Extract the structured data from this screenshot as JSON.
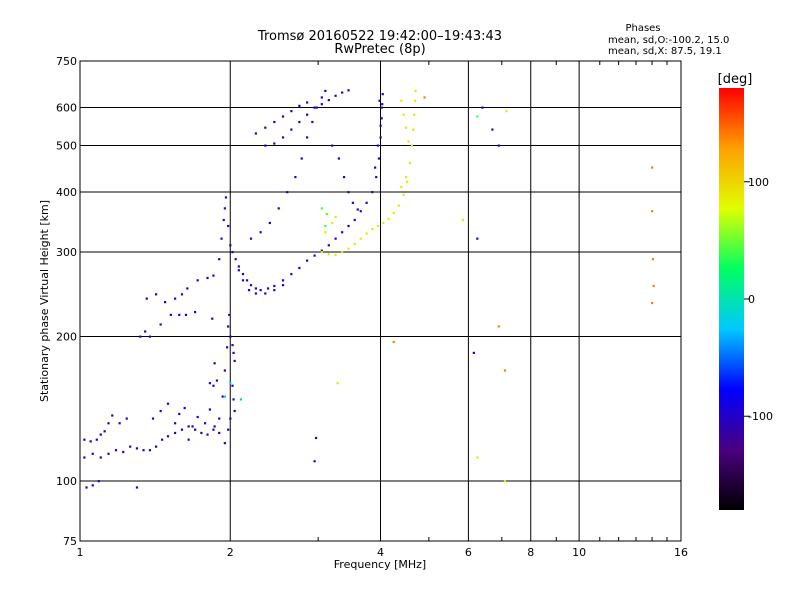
{
  "chart_data": {
    "type": "scatter",
    "title": "Tromsø 20160522 19:42:00–19:43:43",
    "subtitle": "RwPretec (8p)",
    "xlabel": "Frequency [MHz]",
    "ylabel": "Stationary phase Virtual Height [km]",
    "x_scale": "log",
    "y_scale": "log",
    "xlim": [
      1,
      16
    ],
    "ylim": [
      75,
      750
    ],
    "x_ticks": [
      1,
      2,
      4,
      6,
      8,
      10,
      16
    ],
    "x_tick_labels": [
      "1",
      "2",
      "4",
      "6",
      "8",
      "10",
      "16"
    ],
    "y_ticks": [
      75,
      100,
      200,
      300,
      400,
      500,
      600,
      750
    ],
    "y_tick_labels": [
      "75",
      "100",
      "200",
      "300",
      "400",
      "500",
      "600",
      "750"
    ],
    "grid": true,
    "stats": {
      "heading": "Phases",
      "line1": "mean, sd,O:-100.2, 15.0",
      "line2": "mean, sd,X: 87.5, 19.1"
    },
    "colorbar": {
      "label": "[deg]",
      "range": [
        -180,
        180
      ],
      "ticks": [
        100,
        0,
        -100
      ],
      "tick_labels": [
        "100",
        "0",
        "-100"
      ],
      "colors": [
        "#000000",
        "#4a0080",
        "#0000ff",
        "#00c8ff",
        "#00ff60",
        "#e0ff00",
        "#ffa000",
        "#ff0000"
      ]
    },
    "series": [
      {
        "trace": "o-mode",
        "phase_deg": -100,
        "points": [
          [
            1.02,
            112
          ],
          [
            1.06,
            114
          ],
          [
            1.1,
            112
          ],
          [
            1.14,
            114
          ],
          [
            1.18,
            116
          ],
          [
            1.22,
            115
          ],
          [
            1.26,
            118
          ],
          [
            1.3,
            117
          ],
          [
            1.34,
            116
          ],
          [
            1.38,
            116
          ],
          [
            1.42,
            118
          ],
          [
            1.46,
            122
          ],
          [
            1.5,
            124
          ],
          [
            1.55,
            126
          ],
          [
            1.6,
            128
          ],
          [
            1.65,
            130
          ],
          [
            1.7,
            128
          ],
          [
            1.75,
            126
          ],
          [
            1.8,
            125
          ],
          [
            1.85,
            128
          ],
          [
            1.9,
            135
          ],
          [
            1.93,
            150
          ],
          [
            1.95,
            170
          ],
          [
            1.97,
            190
          ],
          [
            1.02,
            122
          ],
          [
            1.05,
            121
          ],
          [
            1.08,
            122
          ],
          [
            1.1,
            125
          ],
          [
            1.12,
            127
          ],
          [
            1.14,
            132
          ],
          [
            1.16,
            137
          ],
          [
            1.2,
            132
          ],
          [
            1.24,
            135
          ],
          [
            1.03,
            97
          ],
          [
            1.06,
            98
          ],
          [
            1.09,
            100
          ],
          [
            1.3,
            97
          ],
          [
            1.4,
            135
          ],
          [
            1.45,
            140
          ],
          [
            1.5,
            145
          ],
          [
            1.55,
            132
          ],
          [
            1.58,
            138
          ],
          [
            1.62,
            142
          ],
          [
            1.65,
            122
          ],
          [
            1.68,
            130
          ],
          [
            1.72,
            136
          ],
          [
            1.78,
            132
          ],
          [
            1.82,
            141
          ],
          [
            1.86,
            130
          ],
          [
            1.9,
            126
          ],
          [
            1.95,
            120
          ],
          [
            1.98,
            128
          ],
          [
            2.0,
            135
          ],
          [
            2.03,
            148
          ],
          [
            2.04,
            140
          ],
          [
            2.02,
            158
          ],
          [
            1.82,
            160
          ],
          [
            1.85,
            158
          ],
          [
            1.88,
            162
          ],
          [
            1.86,
            176
          ],
          [
            1.98,
            210
          ],
          [
            2.0,
            200
          ],
          [
            2.02,
            192
          ],
          [
            2.03,
            185
          ],
          [
            2.04,
            178
          ],
          [
            1.99,
            222
          ],
          [
            1.32,
            200
          ],
          [
            1.35,
            205
          ],
          [
            1.38,
            200
          ],
          [
            1.45,
            212
          ],
          [
            1.52,
            222
          ],
          [
            1.58,
            222
          ],
          [
            1.63,
            222
          ],
          [
            1.7,
            225
          ],
          [
            1.84,
            218
          ],
          [
            1.36,
            240
          ],
          [
            1.42,
            245
          ],
          [
            1.48,
            236
          ],
          [
            1.55,
            240
          ],
          [
            1.6,
            245
          ],
          [
            1.64,
            252
          ],
          [
            1.72,
            262
          ],
          [
            1.8,
            265
          ],
          [
            1.85,
            268
          ],
          [
            1.9,
            290
          ],
          [
            1.92,
            320
          ],
          [
            1.94,
            350
          ],
          [
            1.95,
            370
          ],
          [
            1.96,
            390
          ],
          [
            1.98,
            340
          ],
          [
            2.0,
            310
          ],
          [
            2.02,
            300
          ],
          [
            2.05,
            290
          ],
          [
            2.08,
            280
          ],
          [
            2.12,
            270
          ],
          [
            2.16,
            262
          ],
          [
            2.2,
            256
          ],
          [
            2.25,
            252
          ],
          [
            2.3,
            250
          ],
          [
            2.38,
            252
          ],
          [
            2.45,
            255
          ],
          [
            2.55,
            262
          ],
          [
            2.65,
            270
          ],
          [
            2.75,
            278
          ],
          [
            2.85,
            288
          ],
          [
            2.95,
            295
          ],
          [
            3.05,
            302
          ],
          [
            3.15,
            310
          ],
          [
            3.25,
            320
          ],
          [
            3.35,
            330
          ],
          [
            3.45,
            340
          ],
          [
            3.55,
            350
          ],
          [
            3.65,
            365
          ],
          [
            3.75,
            380
          ],
          [
            3.85,
            400
          ],
          [
            3.92,
            430
          ],
          [
            3.97,
            470
          ],
          [
            4.0,
            520
          ],
          [
            4.02,
            570
          ],
          [
            4.03,
            610
          ],
          [
            4.04,
            640
          ],
          [
            2.08,
            275
          ],
          [
            2.12,
            262
          ],
          [
            2.18,
            250
          ],
          [
            2.25,
            246
          ],
          [
            2.35,
            246
          ],
          [
            2.45,
            250
          ],
          [
            2.55,
            256
          ],
          [
            2.2,
            320
          ],
          [
            2.3,
            330
          ],
          [
            2.4,
            345
          ],
          [
            2.5,
            370
          ],
          [
            2.6,
            400
          ],
          [
            2.7,
            430
          ],
          [
            2.78,
            470
          ],
          [
            2.85,
            520
          ],
          [
            2.92,
            560
          ],
          [
            2.98,
            600
          ],
          [
            3.05,
            630
          ],
          [
            3.1,
            650
          ],
          [
            2.35,
            500
          ],
          [
            2.45,
            505
          ],
          [
            2.55,
            520
          ],
          [
            2.65,
            540
          ],
          [
            2.75,
            560
          ],
          [
            2.85,
            580
          ],
          [
            2.95,
            600
          ],
          [
            3.05,
            610
          ],
          [
            3.15,
            622
          ],
          [
            3.25,
            635
          ],
          [
            3.35,
            645
          ],
          [
            3.45,
            652
          ],
          [
            2.25,
            530
          ],
          [
            2.35,
            545
          ],
          [
            2.45,
            560
          ],
          [
            2.55,
            575
          ],
          [
            2.65,
            590
          ],
          [
            2.75,
            605
          ],
          [
            2.85,
            615
          ],
          [
            3.2,
            500
          ],
          [
            3.3,
            470
          ],
          [
            3.38,
            430
          ],
          [
            3.45,
            400
          ],
          [
            3.52,
            380
          ],
          [
            3.6,
            368
          ],
          [
            3.9,
            450
          ],
          [
            3.95,
            500
          ],
          [
            4.0,
            550
          ],
          [
            4.02,
            600
          ],
          [
            3.98,
            620
          ],
          [
            6.25,
            320
          ],
          [
            6.4,
            600
          ],
          [
            6.7,
            540
          ],
          [
            6.9,
            500
          ],
          [
            2.95,
            110
          ],
          [
            2.97,
            123
          ],
          [
            6.15,
            185
          ]
        ]
      },
      {
        "trace": "x-mode",
        "phase_deg": 90,
        "points": [
          [
            3.05,
            300
          ],
          [
            3.15,
            297
          ],
          [
            3.25,
            296
          ],
          [
            3.35,
            300
          ],
          [
            3.45,
            305
          ],
          [
            3.55,
            312
          ],
          [
            3.65,
            320
          ],
          [
            3.75,
            328
          ],
          [
            3.85,
            335
          ],
          [
            3.95,
            340
          ],
          [
            4.05,
            345
          ],
          [
            4.15,
            352
          ],
          [
            4.25,
            362
          ],
          [
            4.35,
            375
          ],
          [
            4.45,
            395
          ],
          [
            4.52,
            420
          ],
          [
            4.58,
            460
          ],
          [
            4.62,
            500
          ],
          [
            4.65,
            540
          ],
          [
            4.67,
            580
          ],
          [
            4.69,
            620
          ],
          [
            4.7,
            650
          ],
          [
            3.1,
            330
          ],
          [
            3.2,
            345
          ],
          [
            3.25,
            355
          ],
          [
            4.4,
            620
          ],
          [
            4.45,
            580
          ],
          [
            4.5,
            545
          ],
          [
            4.55,
            510
          ],
          [
            4.5,
            430
          ],
          [
            4.4,
            410
          ],
          [
            3.28,
            160
          ],
          [
            5.85,
            350
          ],
          [
            6.25,
            112
          ],
          [
            7.1,
            100
          ],
          [
            7.15,
            590
          ]
        ]
      },
      {
        "trace": "other",
        "phase_deg": 140,
        "points": [
          [
            4.25,
            195
          ],
          [
            4.9,
            630
          ],
          [
            6.9,
            210
          ],
          [
            7.1,
            170
          ],
          [
            14.0,
            450
          ],
          [
            14.0,
            365
          ],
          [
            14.05,
            290
          ],
          [
            14.1,
            255
          ],
          [
            14.0,
            235
          ]
        ]
      },
      {
        "trace": "other",
        "phase_deg": 40,
        "points": [
          [
            3.05,
            370
          ],
          [
            3.12,
            360
          ],
          [
            6.25,
            575
          ],
          [
            3.1,
            340
          ]
        ]
      },
      {
        "trace": "other",
        "phase_deg": -20,
        "points": [
          [
            2.0,
            160
          ],
          [
            2.1,
            148
          ],
          [
            1.95,
            150
          ]
        ]
      }
    ]
  }
}
